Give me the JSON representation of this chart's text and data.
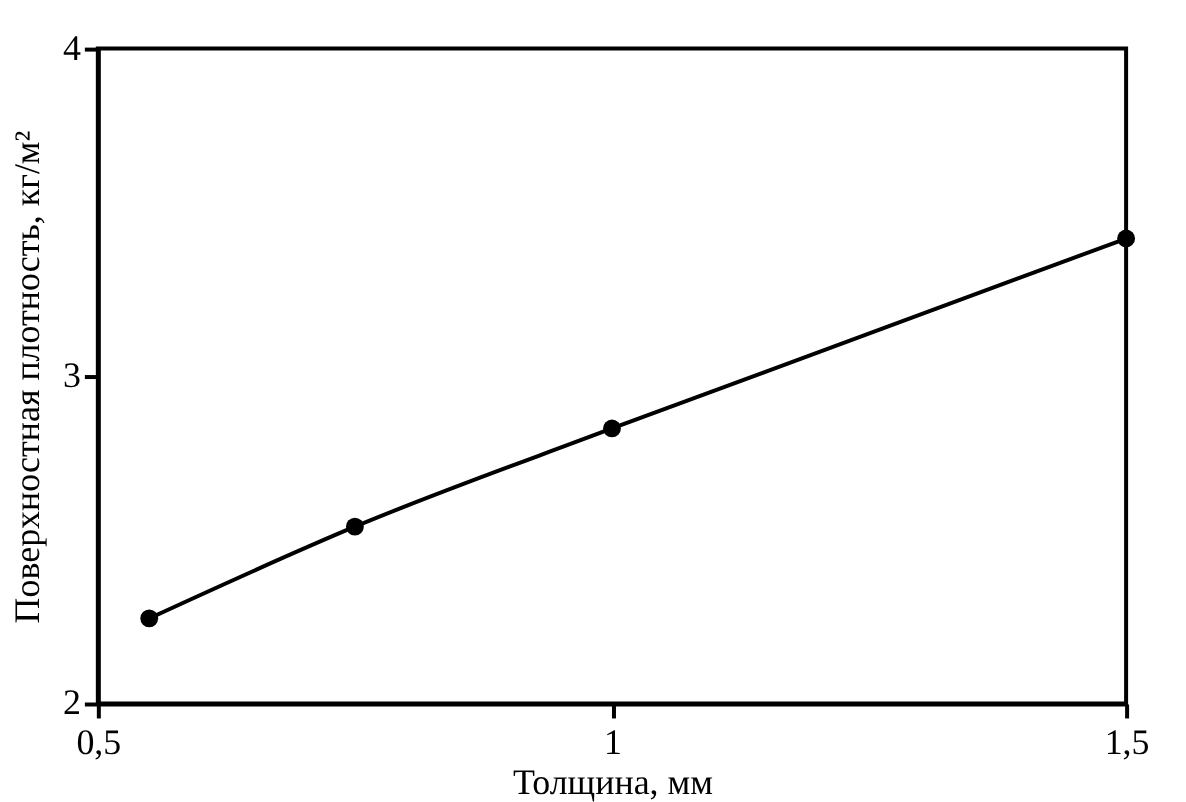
{
  "chart_data": {
    "type": "line",
    "xlabel": "Толщина, мм",
    "ylabel": "Поверхностная плотность, кг/м²",
    "x": [
      0.55,
      0.75,
      1.0,
      1.5
    ],
    "series": [
      {
        "color": "#000000",
        "values": [
          2.26,
          2.54,
          2.84,
          3.42
        ]
      }
    ],
    "xlim": [
      0.5,
      1.5
    ],
    "ylim": [
      2,
      4
    ],
    "xticks": [
      {
        "value": 0.5,
        "label": "0,5"
      },
      1,
      {
        "value": 1.5,
        "label": "1,5"
      }
    ],
    "yticks": [
      2,
      3,
      4
    ],
    "marker": "circle",
    "line_style": "solid",
    "grid": false
  }
}
